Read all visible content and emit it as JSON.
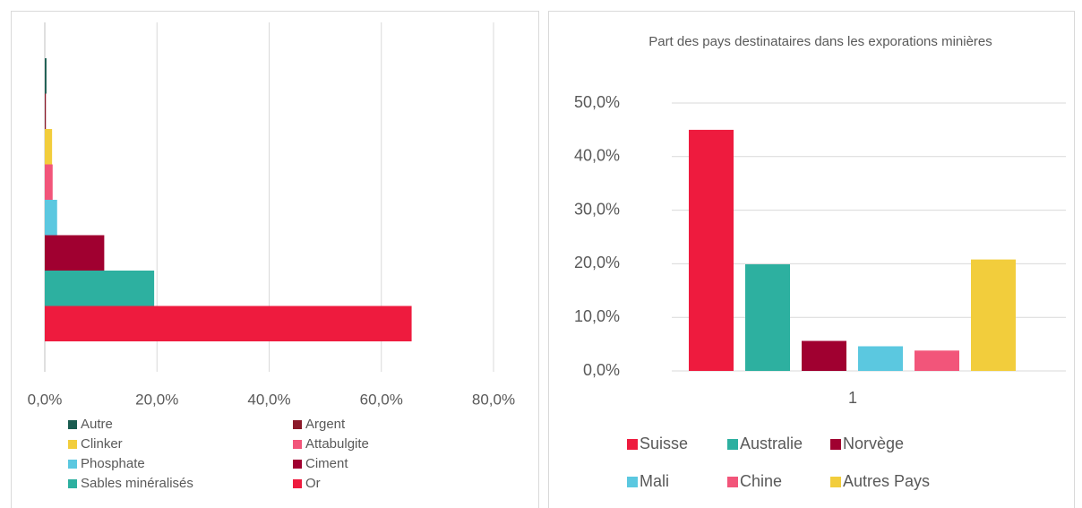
{
  "chart_data": [
    {
      "type": "bar",
      "orientation": "horizontal",
      "series": [
        {
          "name": "Autre",
          "color": "#1a5c50",
          "values": [
            0.3
          ]
        },
        {
          "name": "Argent",
          "color": "#8b1a2a",
          "values": [
            0.2
          ]
        },
        {
          "name": "Clinker",
          "color": "#f2cd3c",
          "values": [
            1.3
          ]
        },
        {
          "name": "Attabulgite",
          "color": "#f2557a",
          "values": [
            1.4
          ]
        },
        {
          "name": "Phosphate",
          "color": "#5bc8e0",
          "values": [
            2.2
          ]
        },
        {
          "name": "Ciment",
          "color": "#a00030",
          "values": [
            10.6
          ]
        },
        {
          "name": "Sables minéralisés",
          "color": "#2db0a0",
          "values": [
            19.5
          ]
        },
        {
          "name": "Or",
          "color": "#ee1b3e",
          "values": [
            65.4
          ]
        }
      ],
      "xlim": [
        0,
        80
      ],
      "xticks": [
        {
          "value": 0,
          "label": "0,0%"
        },
        {
          "value": 20,
          "label": "20,0%"
        },
        {
          "value": 40,
          "label": "40,0%"
        },
        {
          "value": 60,
          "label": "60,0%"
        },
        {
          "value": 80,
          "label": "80,0%"
        }
      ],
      "grid": true,
      "legend": "bottom"
    },
    {
      "type": "bar",
      "orientation": "vertical",
      "title": "Part des pays destinataires dans les exporations minières",
      "categories": [
        "1"
      ],
      "series": [
        {
          "name": "Suisse",
          "color": "#ee1b3e",
          "values": [
            45.0
          ]
        },
        {
          "name": "Australie",
          "color": "#2db0a0",
          "values": [
            19.9
          ]
        },
        {
          "name": "Norvège",
          "color": "#a00030",
          "values": [
            5.6
          ]
        },
        {
          "name": "Mali",
          "color": "#5bc8e0",
          "values": [
            4.6
          ]
        },
        {
          "name": "Chine",
          "color": "#f2557a",
          "values": [
            3.8
          ]
        },
        {
          "name": "Autres Pays",
          "color": "#f2cd3c",
          "values": [
            20.8
          ]
        }
      ],
      "ylim": [
        0,
        50
      ],
      "yticks": [
        {
          "value": 0,
          "label": "0,0%"
        },
        {
          "value": 10,
          "label": "10,0%"
        },
        {
          "value": 20,
          "label": "20,0%"
        },
        {
          "value": 30,
          "label": "30,0%"
        },
        {
          "value": 40,
          "label": "40,0%"
        },
        {
          "value": 50,
          "label": "50,0%"
        }
      ],
      "grid": true,
      "legend": "bottom"
    }
  ]
}
